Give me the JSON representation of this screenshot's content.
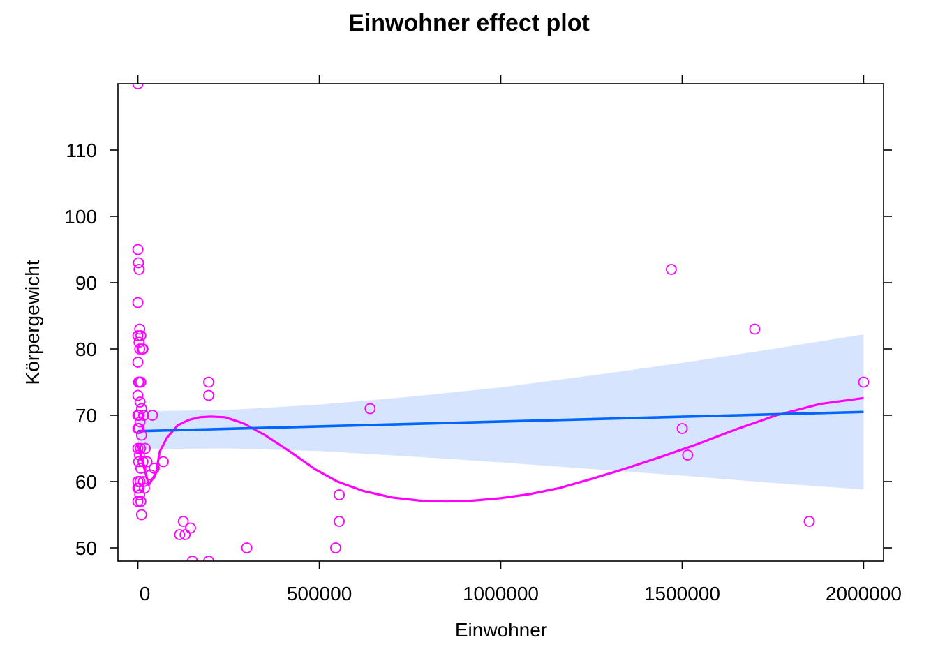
{
  "chart_data": {
    "type": "scatter",
    "title": "Einwohner effect plot",
    "xlabel": "Einwohner",
    "ylabel": "Körpergewicht",
    "xlim": [
      -55000,
      2055000
    ],
    "ylim": [
      48,
      120
    ],
    "xticks": [
      0,
      500000,
      1000000,
      1500000,
      2000000
    ],
    "xtick_labels": [
      "0",
      "500000",
      "1000000",
      "1500000",
      "2000000"
    ],
    "yticks": [
      50,
      60,
      70,
      80,
      90,
      100,
      110
    ],
    "ytick_labels": [
      "50",
      "60",
      "70",
      "80",
      "90",
      "100",
      "110"
    ],
    "grid": false,
    "legend": "none",
    "colors": {
      "points": "#ff00ff",
      "smoother": "#ff00ff",
      "fit_line": "#0066ff",
      "ci_band": "#d6e4fd"
    },
    "fit_line": {
      "x": [
        0,
        2000000
      ],
      "y": [
        67.6,
        70.5
      ]
    },
    "ci_band": {
      "x": [
        0,
        250000,
        500000,
        750000,
        1000000,
        1250000,
        1500000,
        1750000,
        2000000
      ],
      "upper": [
        70.6,
        70.8,
        71.6,
        72.8,
        74.2,
        76.0,
        77.9,
        80.0,
        82.2
      ],
      "lower": [
        64.9,
        65.0,
        64.6,
        63.8,
        62.9,
        61.9,
        60.9,
        59.8,
        58.8
      ]
    },
    "smoother": {
      "x": [
        0,
        15000,
        30000,
        50000,
        60000,
        80000,
        110000,
        140000,
        170000,
        200000,
        240000,
        290000,
        350000,
        420000,
        490000,
        550000,
        620000,
        700000,
        780000,
        850000,
        920000,
        1000000,
        1080000,
        1160000,
        1250000,
        1340000,
        1440000,
        1540000,
        1650000,
        1760000,
        1880000,
        2000000
      ],
      "y": [
        65.5,
        62.5,
        59.5,
        61.3,
        64.5,
        66.6,
        68.5,
        69.3,
        69.7,
        69.8,
        69.7,
        68.8,
        67.0,
        64.5,
        61.8,
        60.0,
        58.6,
        57.6,
        57.1,
        57.0,
        57.1,
        57.5,
        58.1,
        59.0,
        60.4,
        61.9,
        63.7,
        65.6,
        67.9,
        70.0,
        71.7,
        72.6
      ]
    },
    "points": {
      "x": [
        0,
        0,
        1500,
        3000,
        0,
        5000,
        8000,
        0,
        3000,
        14000,
        5000,
        12000,
        0,
        2000,
        8000,
        4000,
        0,
        6000,
        10000,
        3000,
        40000,
        16000,
        0,
        6000,
        0,
        3000,
        10000,
        7000,
        0,
        20000,
        4000,
        14000,
        2000,
        25000,
        45000,
        8000,
        35000,
        0,
        15000,
        0,
        6000,
        0,
        3000,
        18000,
        5000,
        70000,
        0,
        8000,
        10000,
        125000,
        145000,
        115000,
        130000,
        150000,
        195000,
        300000,
        195000,
        195000,
        640000,
        555000,
        555000,
        545000,
        1470000,
        1700000,
        2000000,
        1500000,
        1515000,
        1850000
      ],
      "y": [
        120,
        95,
        93,
        92,
        87,
        83,
        82,
        82,
        81,
        80,
        80,
        80,
        78,
        75,
        75,
        75,
        73,
        72,
        71,
        70,
        70,
        70,
        70,
        69,
        68,
        68,
        67,
        65,
        65,
        65,
        64,
        63,
        63,
        63,
        62,
        62,
        61,
        60,
        60,
        60,
        60,
        59,
        59,
        59,
        58,
        63,
        57,
        57,
        55,
        54,
        53,
        52,
        52,
        48,
        48,
        50,
        73,
        75,
        71,
        58,
        54,
        50,
        92,
        83,
        75,
        68,
        64,
        54
      ]
    }
  }
}
